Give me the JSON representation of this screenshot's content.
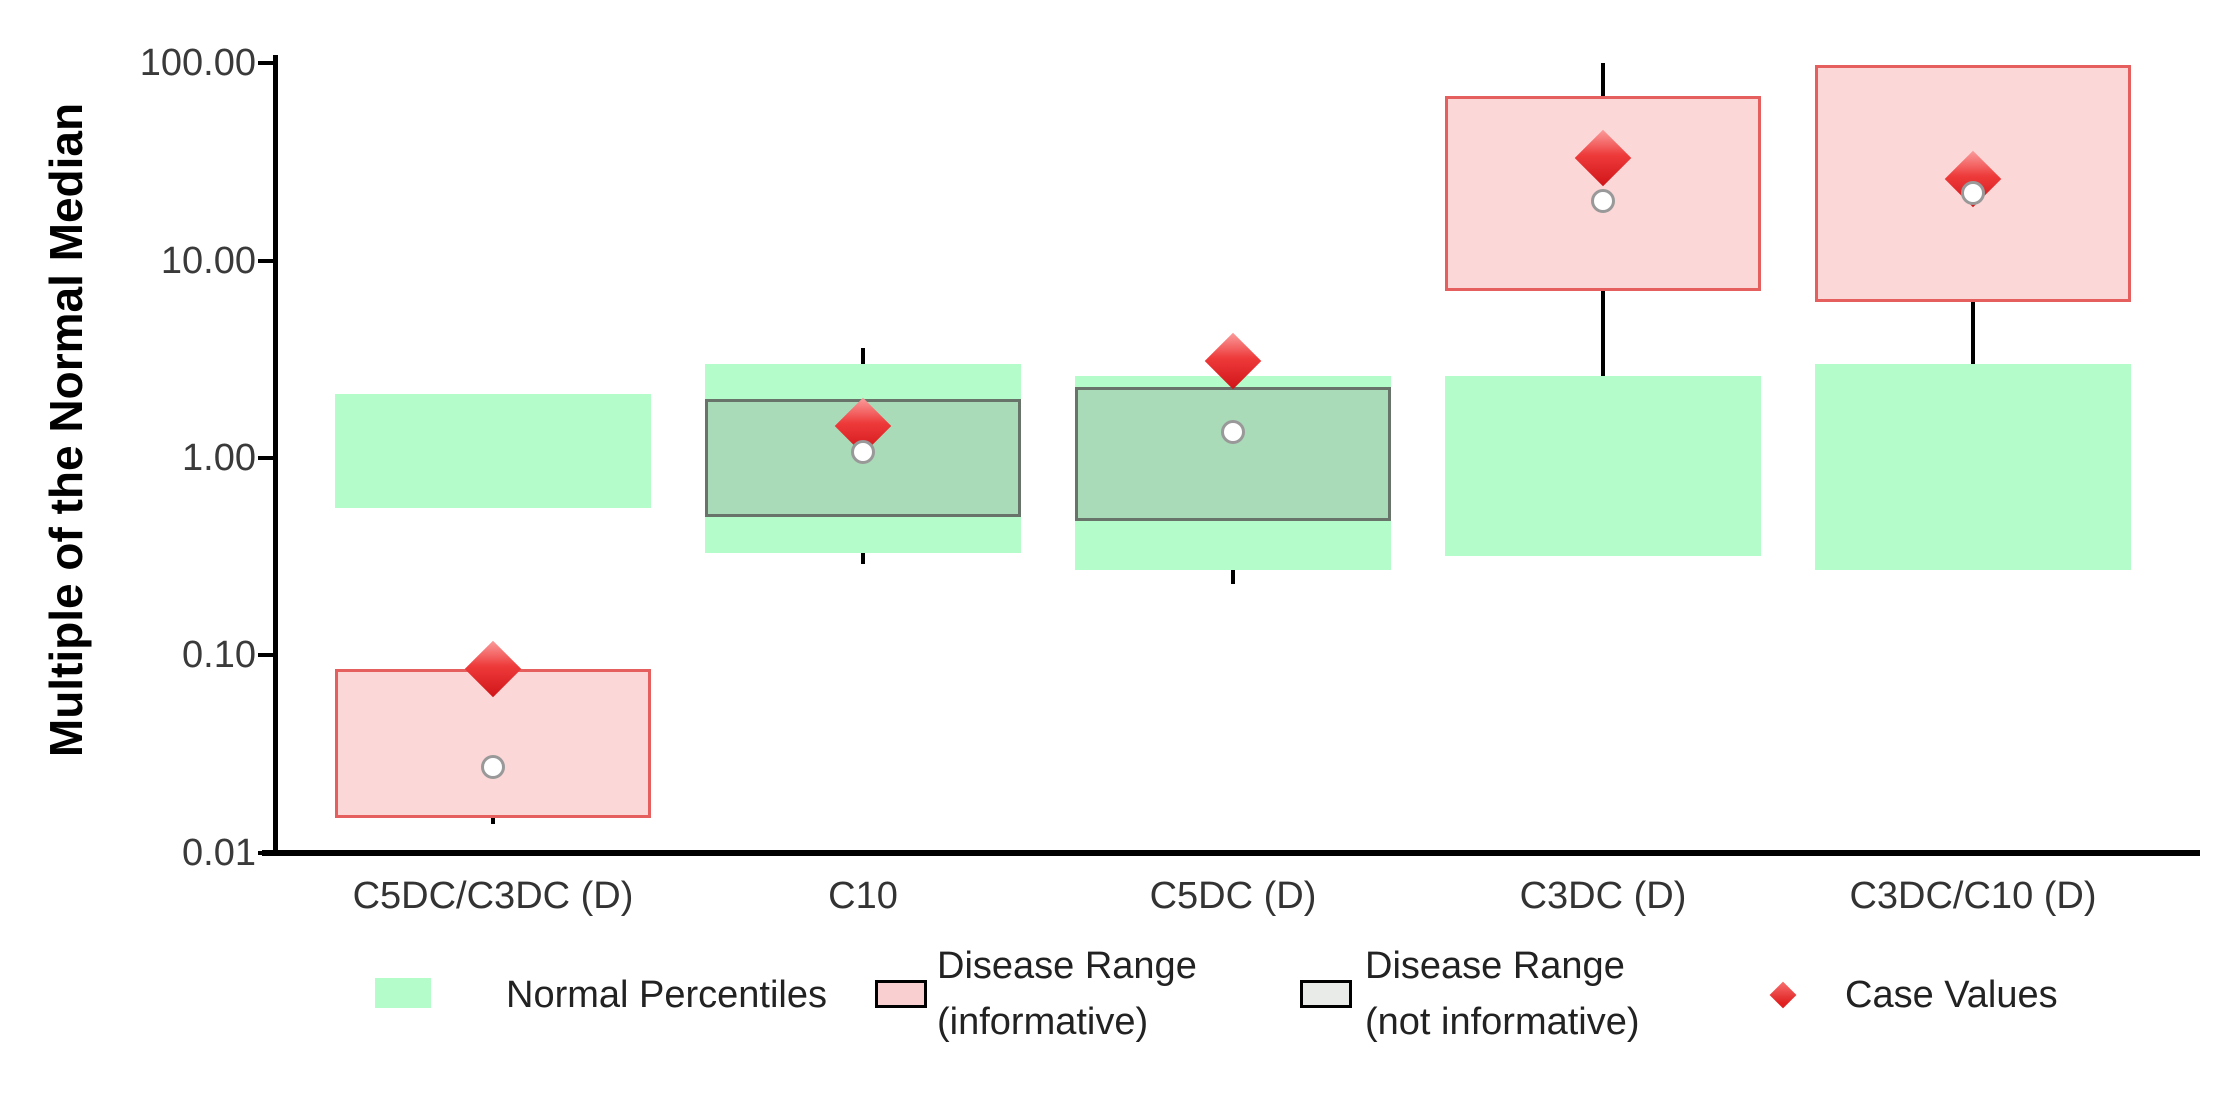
{
  "y_axis": {
    "title": "Multiple of the Normal Median",
    "tick_labels": [
      "100.00",
      "10.00",
      "1.00",
      "0.10",
      "0.01"
    ],
    "tick_values": [
      100,
      10,
      1,
      0.1,
      0.01
    ]
  },
  "chart_data": {
    "type": "box-range",
    "yscale": "log",
    "ylim": [
      0.01,
      100
    ],
    "ylabel": "Multiple of the Normal Median",
    "xlabel": "",
    "grid": false,
    "legend_position": "bottom",
    "ytick_labels": [
      "100.00",
      "10.00",
      "1.00",
      "0.10",
      "0.01"
    ],
    "ytick_values": [
      100,
      10,
      1,
      0.1,
      0.01
    ],
    "categories": [
      "C5DC/C3DC (D)",
      "C10",
      "C5DC (D)",
      "C3DC (D)",
      "C3DC/C10 (D)"
    ],
    "series": [
      {
        "category": "C5DC/C3DC (D)",
        "normal_percentile_range": [
          0.56,
          2.1
        ],
        "disease_range": [
          0.015,
          0.085
        ],
        "disease_range_informative": true,
        "whisker_range": [
          0.014,
          0.05
        ],
        "case_value": 0.085,
        "percentile_marker": 0.027
      },
      {
        "category": "C10",
        "normal_percentile_range": [
          0.33,
          3.0
        ],
        "disease_range": [
          0.5,
          2.0
        ],
        "disease_range_informative": false,
        "whisker_range": [
          0.29,
          3.6
        ],
        "case_value": 1.45,
        "percentile_marker": 1.07
      },
      {
        "category": "C5DC (D)",
        "normal_percentile_range": [
          0.27,
          2.6
        ],
        "disease_range": [
          0.48,
          2.3
        ],
        "disease_range_informative": false,
        "whisker_range": [
          0.23,
          2.3
        ],
        "case_value": 3.1,
        "percentile_marker": 1.35
      },
      {
        "category": "C3DC (D)",
        "normal_percentile_range": [
          0.32,
          2.6
        ],
        "disease_range": [
          7.0,
          68
        ],
        "disease_range_informative": true,
        "whisker_range": [
          1.3,
          100
        ],
        "case_value": 33,
        "percentile_marker": 20
      },
      {
        "category": "C3DC/C10 (D)",
        "normal_percentile_range": [
          0.27,
          3.0
        ],
        "disease_range": [
          6.2,
          98
        ],
        "disease_range_informative": true,
        "whisker_range": [
          1.2,
          6.2
        ],
        "case_value": 26,
        "percentile_marker": 22
      }
    ]
  },
  "legend": {
    "items": [
      {
        "swatch": "normal-range",
        "line1": "Normal Percentiles",
        "line2": ""
      },
      {
        "swatch": "disease-informative",
        "line1": "Disease Range",
        "line2": "(informative)"
      },
      {
        "swatch": "disease-not-informative",
        "line1": "Disease Range",
        "line2": "(not informative)"
      },
      {
        "swatch": "case-diamond",
        "line1": "Case Values",
        "line2": ""
      }
    ]
  },
  "colors": {
    "normal_range": "#b4fcca",
    "disease_informative_fill": "#fcd7d7",
    "disease_informative_border": "#e65f5f",
    "disease_not_informative_fill": "#aadbb8",
    "disease_not_informative_border": "#68736a",
    "legend_not_informative_fill": "#e9ebe9",
    "legend_swatch_border": "#000000",
    "case_marker": "#e42320",
    "axis": "#000000"
  }
}
